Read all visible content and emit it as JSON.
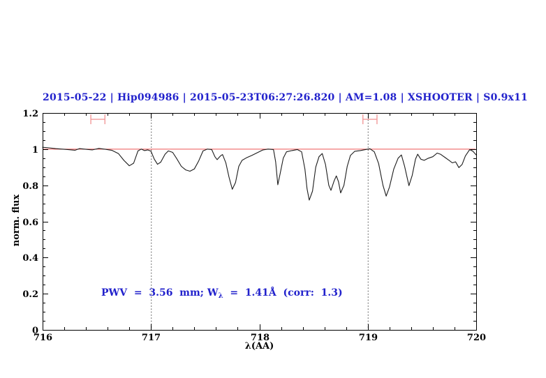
{
  "title": "2015-05-22 | Hip094986 | 2015-05-23T06:27:26.820 | AM=1.08 | XSHOOTER | S0.9x11",
  "annotation": {
    "prefix": "PWV  =  3.56  mm; W",
    "sub": "λ",
    "suffix": "  =  1.41Å  (corr:  1.3)"
  },
  "colors": {
    "title_blue": "#2222cc",
    "annotation_blue": "#2222cc",
    "spectrum_black": "#1c1c1c",
    "continuum_red": "#ee5555",
    "marker_red": "#f29a9a",
    "axis_black": "#000000",
    "dotted_gray": "#444444",
    "background": "#ffffff"
  },
  "chart_data": {
    "type": "line",
    "title": "2015-05-22 | Hip094986 | 2015-05-23T06:27:26.820 | AM=1.08 | XSHOOTER | S0.9x11",
    "xlabel": "λ(AA)",
    "ylabel": "norm. flux",
    "xlim": [
      716,
      720
    ],
    "ylim": [
      0,
      1.2
    ],
    "grid": "off",
    "legend": "none",
    "x_ticks": [
      {
        "value": 716,
        "label": "716"
      },
      {
        "value": 717,
        "label": "717"
      },
      {
        "value": 718,
        "label": "718"
      },
      {
        "value": 719,
        "label": "719"
      },
      {
        "value": 720,
        "label": "720"
      }
    ],
    "y_ticks": [
      {
        "value": 0,
        "label": "0"
      },
      {
        "value": 0.2,
        "label": "0.2"
      },
      {
        "value": 0.4,
        "label": "0.4"
      },
      {
        "value": 0.6,
        "label": "0.6"
      },
      {
        "value": 0.8,
        "label": "0.8"
      },
      {
        "value": 1,
        "label": "1"
      },
      {
        "value": 1.2,
        "label": "1.2"
      }
    ],
    "x_minor_step": 0.2,
    "y_minor_step": 0.05,
    "dotted_vlines": [
      717,
      719
    ],
    "continuum_level": 1.0,
    "range_markers": [
      {
        "x_center": 716.51,
        "half_width": 0.065,
        "y": 1.165
      },
      {
        "x_center": 719.02,
        "half_width": 0.065,
        "y": 1.165
      }
    ],
    "series": [
      {
        "name": "telluric-spectrum",
        "points": [
          [
            716.0,
            1.01
          ],
          [
            716.06,
            1.007
          ],
          [
            716.12,
            1.003
          ],
          [
            716.18,
            1.0
          ],
          [
            716.24,
            0.997
          ],
          [
            716.3,
            0.994
          ],
          [
            716.34,
            1.003
          ],
          [
            716.4,
            0.999
          ],
          [
            716.46,
            0.996
          ],
          [
            716.52,
            1.004
          ],
          [
            716.58,
            0.999
          ],
          [
            716.64,
            0.993
          ],
          [
            716.7,
            0.975
          ],
          [
            716.75,
            0.938
          ],
          [
            716.8,
            0.908
          ],
          [
            716.84,
            0.922
          ],
          [
            716.88,
            0.99
          ],
          [
            716.91,
            1.0
          ],
          [
            716.94,
            0.992
          ],
          [
            716.97,
            0.996
          ],
          [
            717.0,
            0.988
          ],
          [
            717.03,
            0.945
          ],
          [
            717.06,
            0.916
          ],
          [
            717.09,
            0.928
          ],
          [
            717.13,
            0.972
          ],
          [
            717.16,
            0.99
          ],
          [
            717.2,
            0.982
          ],
          [
            717.24,
            0.945
          ],
          [
            717.28,
            0.905
          ],
          [
            717.32,
            0.885
          ],
          [
            717.36,
            0.878
          ],
          [
            717.4,
            0.89
          ],
          [
            717.44,
            0.935
          ],
          [
            717.48,
            0.99
          ],
          [
            717.52,
            1.0
          ],
          [
            717.56,
            0.998
          ],
          [
            717.59,
            0.958
          ],
          [
            717.61,
            0.942
          ],
          [
            717.64,
            0.962
          ],
          [
            717.66,
            0.97
          ],
          [
            717.69,
            0.925
          ],
          [
            717.72,
            0.845
          ],
          [
            717.75,
            0.778
          ],
          [
            717.78,
            0.815
          ],
          [
            717.81,
            0.905
          ],
          [
            717.84,
            0.938
          ],
          [
            717.88,
            0.952
          ],
          [
            717.93,
            0.965
          ],
          [
            717.98,
            0.98
          ],
          [
            718.03,
            0.995
          ],
          [
            718.08,
            1.0
          ],
          [
            718.13,
            0.998
          ],
          [
            718.15,
            0.93
          ],
          [
            718.17,
            0.803
          ],
          [
            718.19,
            0.86
          ],
          [
            718.22,
            0.95
          ],
          [
            718.25,
            0.985
          ],
          [
            718.3,
            0.992
          ],
          [
            718.35,
            0.998
          ],
          [
            718.39,
            0.985
          ],
          [
            718.42,
            0.89
          ],
          [
            718.44,
            0.78
          ],
          [
            718.46,
            0.718
          ],
          [
            718.49,
            0.768
          ],
          [
            718.52,
            0.9
          ],
          [
            718.55,
            0.958
          ],
          [
            718.58,
            0.976
          ],
          [
            718.61,
            0.915
          ],
          [
            718.64,
            0.8
          ],
          [
            718.66,
            0.772
          ],
          [
            718.69,
            0.825
          ],
          [
            718.71,
            0.852
          ],
          [
            718.73,
            0.82
          ],
          [
            718.75,
            0.758
          ],
          [
            718.78,
            0.8
          ],
          [
            718.81,
            0.905
          ],
          [
            718.84,
            0.965
          ],
          [
            718.88,
            0.988
          ],
          [
            718.93,
            0.992
          ],
          [
            718.98,
            0.998
          ],
          [
            719.02,
            1.002
          ],
          [
            719.06,
            0.985
          ],
          [
            719.1,
            0.92
          ],
          [
            719.14,
            0.8
          ],
          [
            719.17,
            0.74
          ],
          [
            719.2,
            0.79
          ],
          [
            719.24,
            0.89
          ],
          [
            719.28,
            0.95
          ],
          [
            719.31,
            0.968
          ],
          [
            719.34,
            0.905
          ],
          [
            719.38,
            0.798
          ],
          [
            719.41,
            0.855
          ],
          [
            719.44,
            0.945
          ],
          [
            719.46,
            0.972
          ],
          [
            719.49,
            0.944
          ],
          [
            719.52,
            0.938
          ],
          [
            719.56,
            0.95
          ],
          [
            719.6,
            0.958
          ],
          [
            719.64,
            0.978
          ],
          [
            719.67,
            0.972
          ],
          [
            719.71,
            0.955
          ],
          [
            719.75,
            0.938
          ],
          [
            719.78,
            0.924
          ],
          [
            719.81,
            0.93
          ],
          [
            719.84,
            0.898
          ],
          [
            719.87,
            0.915
          ],
          [
            719.9,
            0.962
          ],
          [
            719.94,
            0.998
          ],
          [
            719.97,
            0.988
          ],
          [
            720.0,
            0.968
          ]
        ]
      }
    ]
  }
}
